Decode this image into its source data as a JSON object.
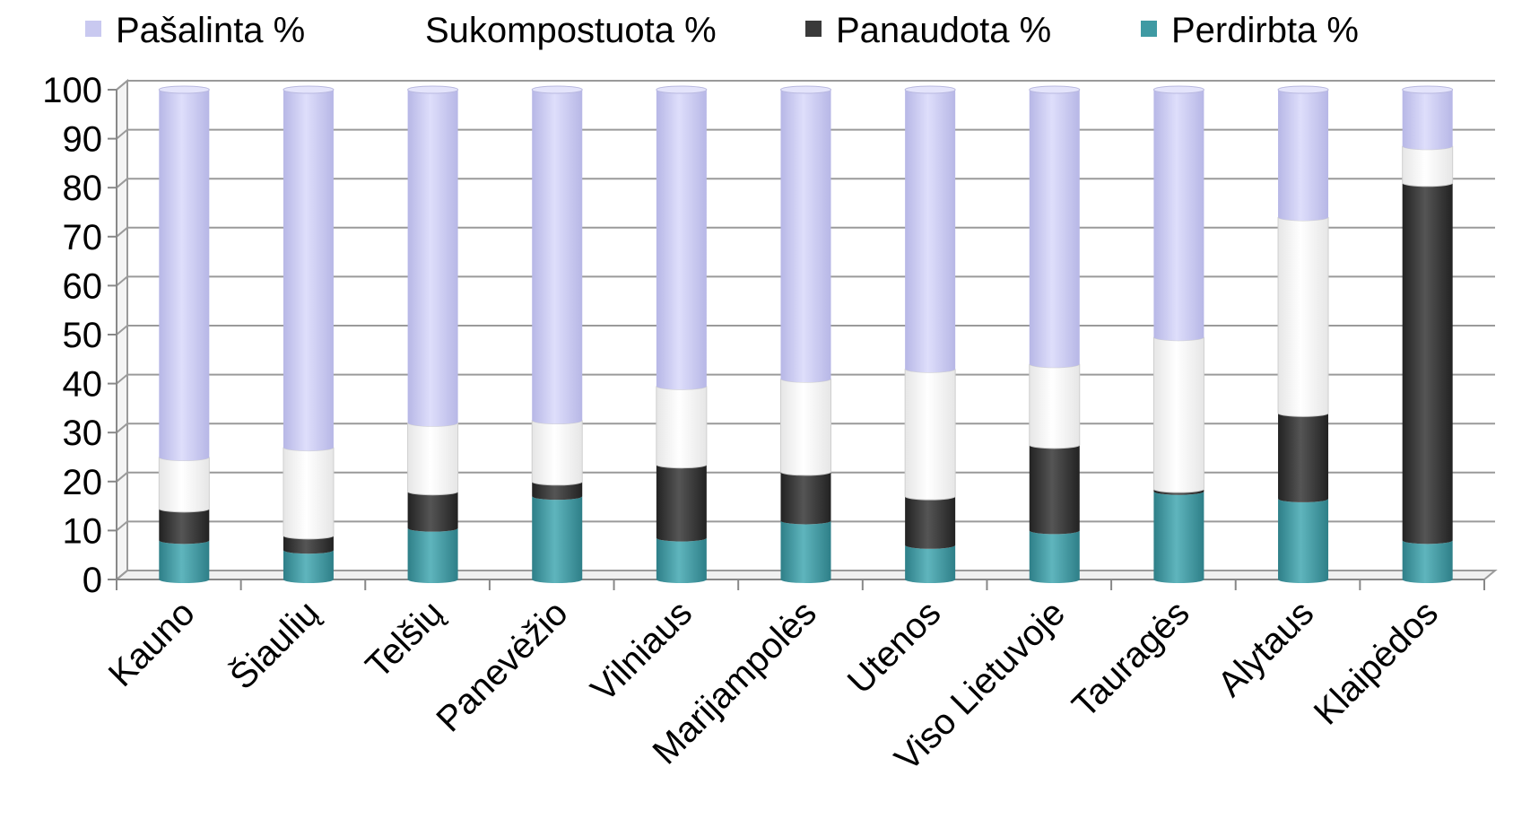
{
  "chart_data": {
    "type": "bar",
    "stacked": true,
    "categories": [
      "Kauno",
      "Šiaulių",
      "Telšių",
      "Panevėžio",
      "Vilniaus",
      "Marijampolės",
      "Utenos",
      "Viso Lietuvoje",
      "Tauragės",
      "Alytaus",
      "Klaipėdos"
    ],
    "series": [
      {
        "name": "Perdirbta %",
        "color": "#3f9aa3",
        "values": [
          8,
          6,
          10.5,
          17,
          8.5,
          12,
          7,
          10,
          18,
          16.5,
          8
        ]
      },
      {
        "name": "Panaudota %",
        "color": "#3a3a3a",
        "values": [
          6.5,
          3,
          7.5,
          3,
          15,
          10,
          10,
          17.5,
          0.5,
          17.5,
          73
        ]
      },
      {
        "name": "Sukompostuota %",
        "color": "#ffffff",
        "values": [
          10.5,
          18,
          14,
          12.5,
          16,
          19,
          26,
          16.5,
          31,
          40,
          7.5
        ]
      },
      {
        "name": "Pašalinta %",
        "color": "#c9c9f0",
        "values": [
          75,
          73,
          68,
          67.5,
          60.5,
          59,
          57,
          56,
          50.5,
          26,
          11.5
        ]
      }
    ],
    "legend_order": [
      "Pašalinta %",
      "Sukompostuota %",
      "Panaudota %",
      "Perdirbta %"
    ],
    "legend_position": "top",
    "yticks": [
      "0",
      "10",
      "20",
      "30",
      "40",
      "50",
      "60",
      "70",
      "80",
      "90",
      "100"
    ],
    "ylim": [
      0,
      100
    ],
    "grid": true
  }
}
